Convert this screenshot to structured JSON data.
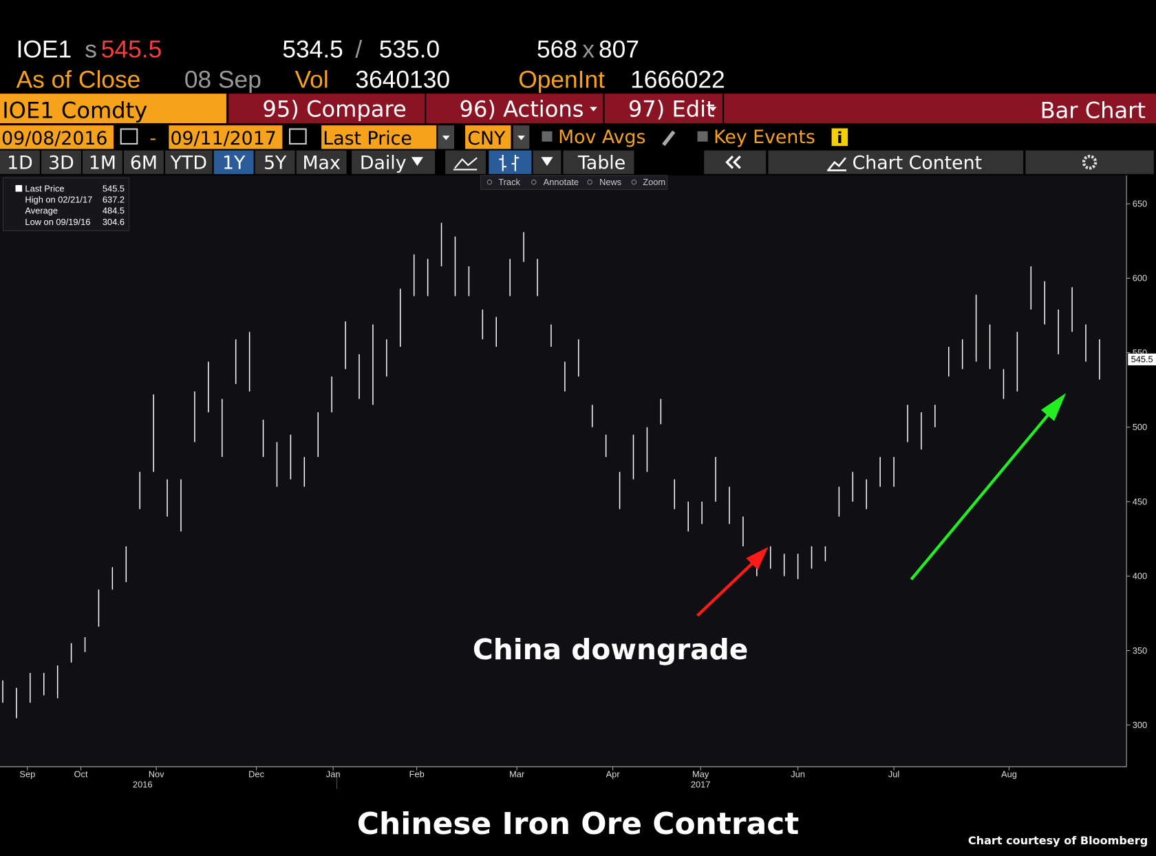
{
  "header": {
    "ticker": "IOE1",
    "flag": "s",
    "price": "545.5",
    "bid": "534.5",
    "sep": "/",
    "ask": "535.0",
    "bid_size": "568",
    "times": "x",
    "ask_size": "807",
    "as_of": "As of Close",
    "date": "08 Sep",
    "vol_label": "Vol",
    "vol": "3640130",
    "oi_label": "OpenInt",
    "oi": "1666022"
  },
  "toolbar": {
    "security": "IOE1 Comdty",
    "compare": "95) Compare",
    "actions": "96) Actions",
    "edit": "97) Edit",
    "chart_type": "Bar Chart",
    "start_date": "09/08/2016",
    "dash": "-",
    "end_date": "09/11/2017",
    "field": "Last Price",
    "currency": "CNY",
    "mov_avgs": "Mov Avgs",
    "key_events": "Key Events",
    "periods": [
      "1D",
      "3D",
      "1M",
      "6M",
      "YTD",
      "1Y",
      "5Y",
      "Max"
    ],
    "frequency": "Daily",
    "table": "Table",
    "chart_content": "Chart Content",
    "tools": [
      "Track",
      "Annotate",
      "News",
      "Zoom"
    ]
  },
  "chart_data": {
    "type": "ohlc",
    "title": "Chinese Iron Ore Contract",
    "credit": "Chart courtesy of Bloomberg",
    "annotation": "China downgrade",
    "legend": [
      [
        "Last Price",
        "545.5"
      ],
      [
        "High on 02/21/17",
        "637.2"
      ],
      [
        "Average",
        "484.5"
      ],
      [
        "Low on 09/19/16",
        "304.6"
      ]
    ],
    "series": [
      {
        "name": "IOE1 Comdty",
        "color": "#ffffff",
        "high": [
          330,
          325,
          335,
          335,
          340,
          355,
          359,
          391,
          406,
          420,
          470,
          522,
          465,
          465,
          524,
          544,
          519,
          559,
          564,
          505,
          490,
          495,
          480,
          510,
          534,
          571,
          549,
          569,
          559,
          593,
          616,
          613,
          637.2,
          628,
          608,
          579,
          574,
          613,
          631,
          613,
          569,
          544,
          559,
          515,
          495,
          470,
          495,
          500,
          519,
          465,
          450,
          450,
          480,
          460,
          440,
          415,
          420,
          415,
          415,
          420,
          420,
          460,
          470,
          465,
          480,
          480,
          515,
          510,
          515,
          554,
          559,
          589,
          569,
          539,
          564,
          608,
          598,
          579,
          594,
          569,
          559
        ],
        "low": [
          315,
          304.6,
          315,
          320,
          318,
          342,
          349,
          366,
          391,
          396,
          445,
          470,
          440,
          430,
          490,
          510,
          480,
          529,
          524,
          480,
          460,
          465,
          460,
          480,
          510,
          539,
          519,
          515,
          534,
          554,
          588,
          588,
          608,
          588,
          588,
          559,
          554,
          588,
          611,
          588,
          554,
          524,
          534,
          500,
          480,
          445,
          465,
          470,
          502,
          445,
          430,
          435,
          450,
          435,
          420,
          400,
          405,
          400,
          398,
          405,
          410,
          440,
          450,
          445,
          460,
          460,
          490,
          485,
          500,
          534,
          539,
          544,
          539,
          519,
          524,
          579,
          569,
          549,
          564,
          544,
          532
        ]
      }
    ],
    "last_price": 545.5,
    "xlim": [
      -0.2,
      81
    ],
    "xticks": [
      {
        "value": 1.8,
        "label": "Sep"
      },
      {
        "value": 5.7,
        "label": "Oct"
      },
      {
        "value": 11.2,
        "label": "Nov"
      },
      {
        "value": 18.5,
        "label": "Dec"
      },
      {
        "value": 24.1,
        "label": "Jan"
      },
      {
        "value": 30.2,
        "label": "Feb"
      },
      {
        "value": 37.5,
        "label": "Mar"
      },
      {
        "value": 44.5,
        "label": "Apr"
      },
      {
        "value": 50.9,
        "label": "May"
      },
      {
        "value": 58,
        "label": "Jun"
      },
      {
        "value": 65,
        "label": "Jul"
      },
      {
        "value": 73.4,
        "label": "Aug"
      }
    ],
    "year_ticks": [
      {
        "value": 10.2,
        "label": "2016"
      },
      {
        "value": 50.9,
        "label": "2017"
      }
    ],
    "ylim": [
      272,
      669
    ],
    "yticks": [
      300,
      350,
      400,
      450,
      500,
      550,
      600,
      650
    ],
    "grid": false
  }
}
